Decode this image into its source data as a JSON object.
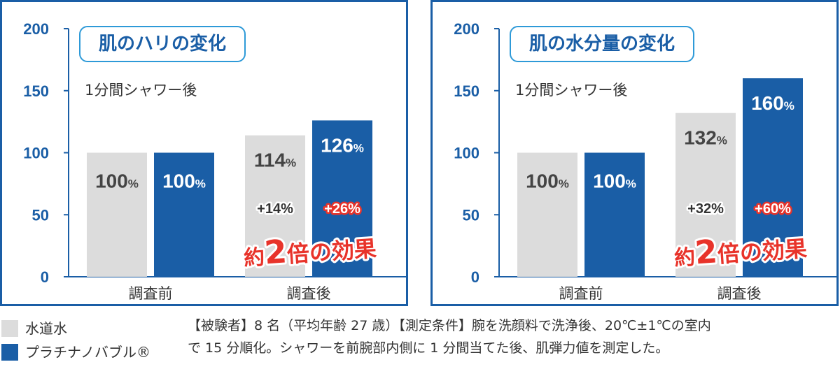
{
  "chart_data": [
    {
      "type": "bar",
      "title": "肌のハリの変化",
      "subtitle": "1分間シャワー後",
      "categories": [
        "調査前",
        "調査後"
      ],
      "series": [
        {
          "name": "水道水",
          "values": [
            100,
            114
          ],
          "color": "#dcdcdc",
          "value_labels": [
            "100%",
            "114%"
          ]
        },
        {
          "name": "プラチナノバブル®",
          "values": [
            100,
            126
          ],
          "color": "#1a5ea6",
          "value_labels": [
            "100%",
            "126%"
          ]
        }
      ],
      "change_labels": [
        "+14%",
        "+26%"
      ],
      "annotation": "約2倍の効果",
      "ylim": [
        0,
        200
      ],
      "yticks": [
        0,
        50,
        100,
        150,
        200
      ]
    },
    {
      "type": "bar",
      "title": "肌の水分量の変化",
      "subtitle": "1分間シャワー後",
      "categories": [
        "調査前",
        "調査後"
      ],
      "series": [
        {
          "name": "水道水",
          "values": [
            100,
            132
          ],
          "color": "#dcdcdc",
          "value_labels": [
            "100%",
            "132%"
          ]
        },
        {
          "name": "プラチナノバブル®",
          "values": [
            100,
            160
          ],
          "color": "#1a5ea6",
          "value_labels": [
            "100%",
            "160%"
          ]
        }
      ],
      "change_labels": [
        "+32%",
        "+60%"
      ],
      "annotation": "約2倍の効果",
      "ylim": [
        0,
        200
      ],
      "yticks": [
        0,
        50,
        100,
        150,
        200
      ]
    }
  ],
  "legend": {
    "items": [
      {
        "label": "水道水",
        "color": "#dcdcdc"
      },
      {
        "label": "プラチナノバブル®",
        "color": "#1a5ea6"
      }
    ]
  },
  "footnote": {
    "line1": "【被験者】8 名（平均年齢 27 歳）【測定条件】腕を洗顔料で洗浄後、20℃±1℃の室内",
    "line2": "で 15 分順化。シャワーを前腕部内側に 1 分間当てた後、肌弾力値を測定した。"
  },
  "colors": {
    "frame": "#1a5ea6",
    "title_border": "#2e9ad8",
    "annotation": "#e8332a",
    "axis": "#1a5ea6"
  }
}
